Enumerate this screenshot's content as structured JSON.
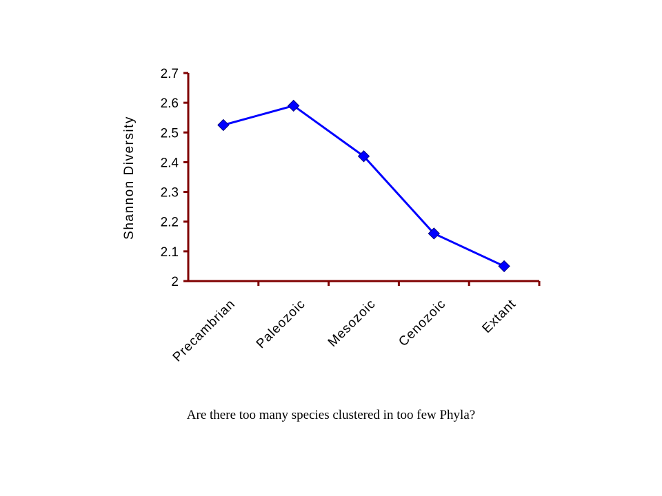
{
  "caption": "Are there too many species clustered in too few Phyla?",
  "chart_data": {
    "type": "line",
    "title": "",
    "xlabel": "",
    "ylabel": "Shannon Diversity",
    "categories": [
      "Precambrian",
      "Paleozoic",
      "Mesozoic",
      "Cenozoic",
      "Extant"
    ],
    "series": [
      {
        "values": [
          2.525,
          2.59,
          2.42,
          2.16,
          2.05
        ],
        "color": "#0000ff",
        "marker": "diamond"
      }
    ],
    "ylim": [
      2,
      2.7
    ],
    "yticks": [
      2,
      2.1,
      2.2,
      2.3,
      2.4,
      2.5,
      2.6,
      2.7
    ],
    "ytick_labels": [
      "2",
      "2.1",
      "2.2",
      "2.3",
      "2.4",
      "2.5",
      "2.6",
      "2.7"
    ],
    "axis_color": "#800000",
    "grid": false,
    "legend": "none"
  }
}
